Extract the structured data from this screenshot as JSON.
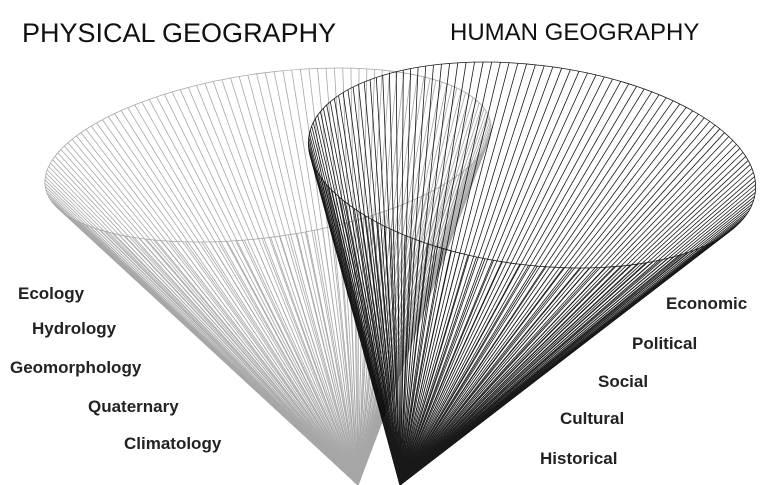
{
  "physical": {
    "title": "PHYSICAL GEOGRAPHY",
    "branches": [
      "Ecology",
      "Hydrology",
      "Geomorphology",
      "Quaternary",
      "Climatology"
    ]
  },
  "human": {
    "title": "HUMAN GEOGRAPHY",
    "branches": [
      "Economic",
      "Political",
      "Social",
      "Cultural",
      "Historical"
    ]
  }
}
